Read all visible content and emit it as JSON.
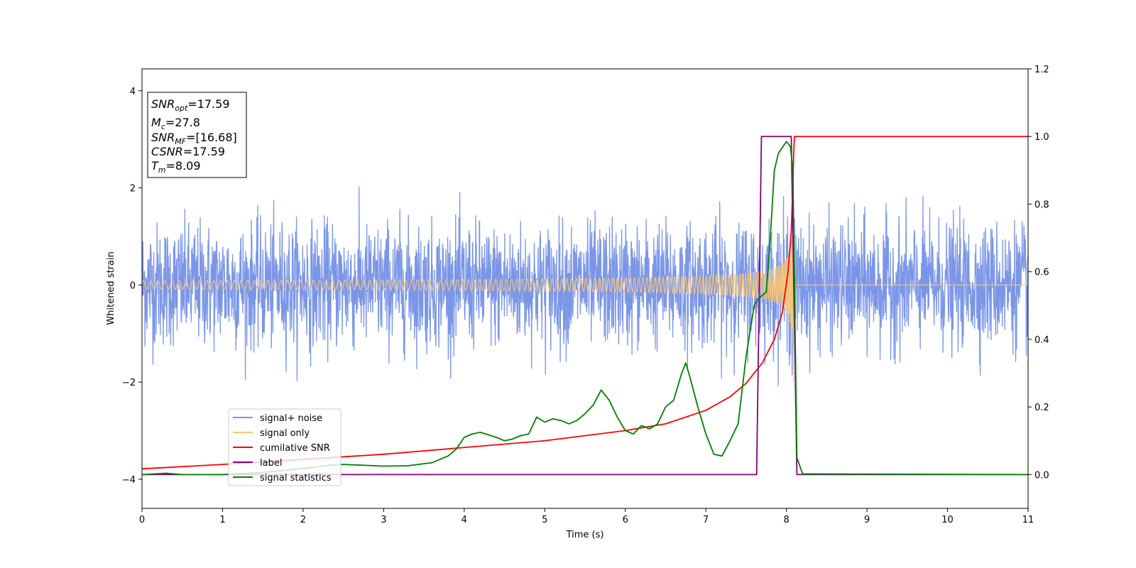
{
  "chart_data": {
    "type": "line",
    "xlabel": "Time (s)",
    "ylabel": "Whitened strain",
    "xlim": [
      0,
      11
    ],
    "ylim": [
      -4.6,
      4.45
    ],
    "y2lim": [
      -0.1,
      1.2
    ],
    "x_ticks": [
      0,
      1,
      2,
      3,
      4,
      5,
      6,
      7,
      8,
      9,
      10,
      11
    ],
    "x_tick_labels": [
      "0",
      "1",
      "2",
      "3",
      "4",
      "5",
      "6",
      "7",
      "8",
      "9",
      "10",
      "11"
    ],
    "y_ticks": [
      4,
      2,
      0,
      -2,
      -4
    ],
    "y_tick_labels": [
      "4",
      "2",
      "0",
      "−2",
      "−4"
    ],
    "y2_ticks": [
      1.2,
      1.0,
      0.8,
      0.6,
      0.4,
      0.2,
      0.0
    ],
    "y2_tick_labels": [
      "1.2",
      "1.0",
      "0.8",
      "0.6",
      "0.4",
      "0.2",
      "0.0"
    ],
    "legend_position": "lower-left",
    "annotation": {
      "lines": [
        {
          "main": "SNR",
          "sub": "opt",
          "value": "=17.59"
        },
        {
          "main": "M",
          "sub": "c",
          "value": "=27.8"
        },
        {
          "main": "SNR",
          "sub": "MF",
          "value": "=[16.68]"
        },
        {
          "main": "CSNR",
          "sub": "",
          "value": "=17.59"
        },
        {
          "main": "T",
          "sub": "m",
          "value": "=8.09"
        }
      ]
    },
    "series": [
      {
        "name": "signal+ noise",
        "color": "#7b96e8",
        "axis": "left",
        "kind": "noise",
        "noise_sigma": 0.62,
        "noise_peak": 2.15,
        "x_range": [
          0,
          11
        ]
      },
      {
        "name": "signal only",
        "color": "#ffc870",
        "axis": "left",
        "kind": "chirp",
        "merger_time": 8.09,
        "peak_amplitude": 2.2,
        "x_range": [
          0,
          11
        ]
      },
      {
        "name": "cumilative SNR",
        "color": "#ff0000",
        "axis": "right",
        "x": [
          0,
          1,
          2,
          3,
          4,
          5,
          6,
          6.5,
          7,
          7.3,
          7.5,
          7.7,
          7.85,
          7.95,
          8.02,
          8.06,
          8.08,
          8.09,
          8.1,
          8.12,
          11
        ],
        "y": [
          0.017,
          0.03,
          0.045,
          0.06,
          0.08,
          0.1,
          0.13,
          0.15,
          0.19,
          0.23,
          0.27,
          0.33,
          0.4,
          0.48,
          0.6,
          0.72,
          0.85,
          0.95,
          1.0,
          1.0,
          1.0
        ]
      },
      {
        "name": "label",
        "color": "#800080",
        "axis": "right",
        "x": [
          0,
          7.63,
          7.69,
          8.06,
          8.13,
          11
        ],
        "y": [
          0,
          0,
          1,
          1,
          0,
          0
        ]
      },
      {
        "name": "signal statistics",
        "color": "#008000",
        "axis": "right",
        "x": [
          0,
          0.3,
          0.5,
          1,
          1.5,
          2,
          2.3,
          2.5,
          3,
          3.3,
          3.5,
          3.6,
          3.8,
          3.9,
          4.0,
          4.1,
          4.2,
          4.4,
          4.5,
          4.6,
          4.7,
          4.8,
          4.9,
          5.0,
          5.1,
          5.2,
          5.3,
          5.4,
          5.5,
          5.6,
          5.7,
          5.8,
          5.9,
          6.0,
          6.1,
          6.2,
          6.3,
          6.4,
          6.5,
          6.6,
          6.7,
          6.75,
          6.8,
          6.9,
          7.0,
          7.1,
          7.2,
          7.3,
          7.4,
          7.5,
          7.6,
          7.65,
          7.7,
          7.75,
          7.8,
          7.85,
          7.9,
          8.0,
          8.05,
          8.08,
          8.13,
          8.2,
          11
        ],
        "y": [
          0,
          0.004,
          0,
          0,
          0.006,
          0.018,
          0.027,
          0.03,
          0.025,
          0.026,
          0.032,
          0.035,
          0.055,
          0.075,
          0.11,
          0.12,
          0.125,
          0.11,
          0.1,
          0.105,
          0.115,
          0.12,
          0.17,
          0.155,
          0.165,
          0.16,
          0.15,
          0.16,
          0.18,
          0.205,
          0.25,
          0.22,
          0.17,
          0.13,
          0.12,
          0.145,
          0.135,
          0.15,
          0.2,
          0.22,
          0.3,
          0.33,
          0.29,
          0.2,
          0.12,
          0.06,
          0.055,
          0.1,
          0.15,
          0.35,
          0.5,
          0.52,
          0.53,
          0.54,
          0.7,
          0.9,
          0.95,
          0.985,
          0.97,
          0.9,
          0.05,
          0.002,
          0
        ]
      }
    ]
  }
}
